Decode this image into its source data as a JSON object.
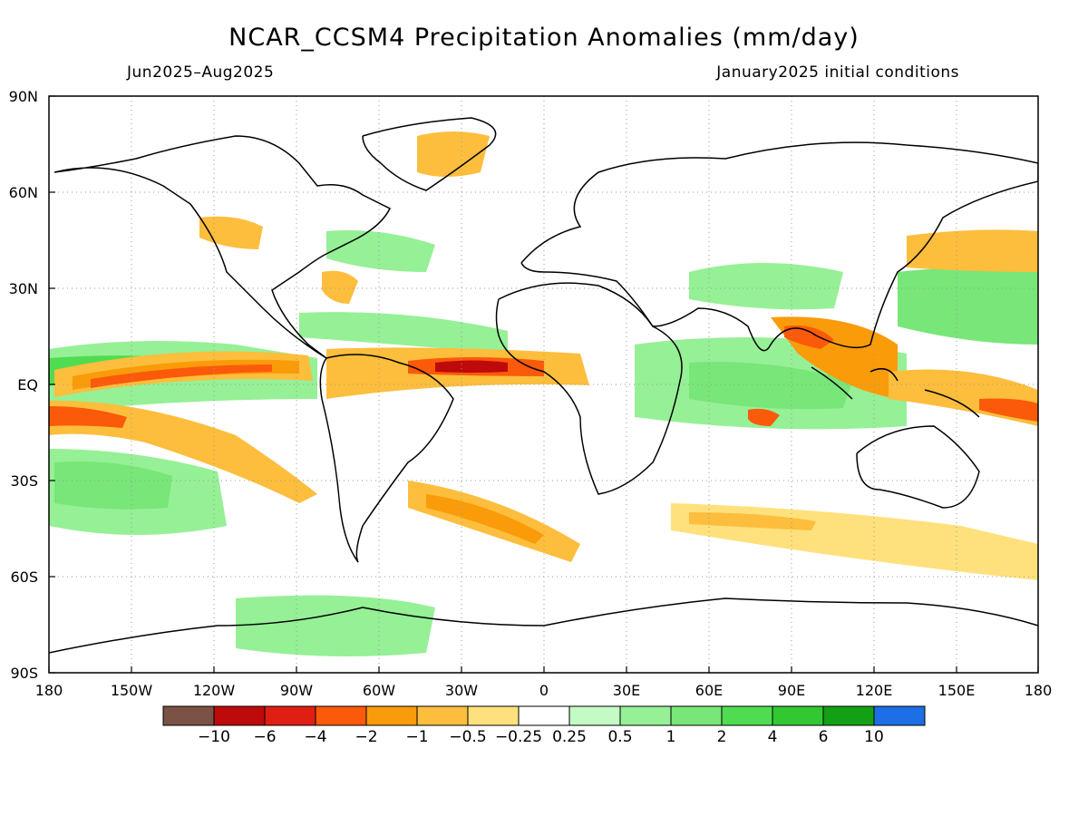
{
  "title": "NCAR_CCSM4 Precipitation Anomalies (mm/day)",
  "subtitle_left": "Jun2025–Aug2025",
  "subtitle_right": "January2025 initial conditions",
  "map": {
    "lat_labels": [
      "90N",
      "60N",
      "30N",
      "EQ",
      "30S",
      "60S",
      "90S"
    ],
    "lat_values": [
      90,
      60,
      30,
      0,
      -30,
      -60,
      -90
    ],
    "lon_labels": [
      "180",
      "150W",
      "120W",
      "90W",
      "60W",
      "30W",
      "0",
      "30E",
      "60E",
      "90E",
      "120E",
      "150E",
      "180"
    ],
    "lon_values": [
      -180,
      -150,
      -120,
      -90,
      -60,
      -30,
      0,
      30,
      60,
      90,
      120,
      150,
      180
    ],
    "grid": "dotted"
  },
  "colorbar": {
    "colors": [
      "#7a5246",
      "#be0a0a",
      "#e01e14",
      "#fa5a0a",
      "#fa9b0a",
      "#fcbe3c",
      "#fee17c",
      "#ffffff",
      "#c4fac4",
      "#96f096",
      "#78e678",
      "#50dc50",
      "#32c832",
      "#14a014",
      "#1e6ee6"
    ],
    "labels": [
      "−10",
      "−6",
      "−4",
      "−2",
      "−1",
      "−0.5",
      "−0.25",
      "0.25",
      "0.5",
      "1",
      "2",
      "4",
      "6",
      "10"
    ]
  },
  "legend_colors": {
    "dry_strong": "#be0a0a",
    "dry": "#fa9b0a",
    "dry_weak": "#fee17c",
    "wet_weak": "#c4fac4",
    "wet": "#78e678",
    "wet_strong": "#32c832"
  }
}
